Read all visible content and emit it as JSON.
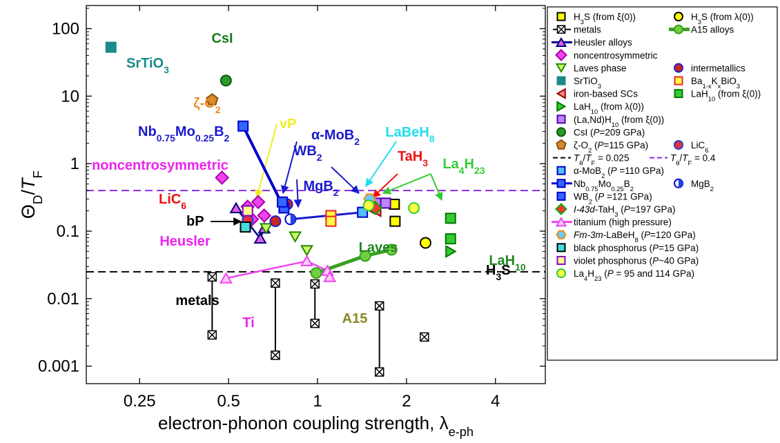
{
  "chart_data": {
    "type": "scatter",
    "xscale": "log",
    "yscale": "log",
    "xlim": [
      0.165,
      5.9
    ],
    "ylim": [
      0.00055,
      220
    ],
    "xlabel": "electron-phonon coupling strength, λe-ph",
    "ylabel": "ΘD/TF",
    "xticks": [
      0.25,
      0.5,
      1,
      2,
      4
    ],
    "xtick_labels": [
      "0.25",
      "0.5",
      "1",
      "2",
      "4"
    ],
    "yticks": [
      0.001,
      0.01,
      0.1,
      1,
      10,
      100
    ],
    "ytick_labels": [
      "0.001",
      "0.01",
      "0.1",
      "1",
      "10",
      "100"
    ],
    "reference_lines": [
      {
        "y": 0.025,
        "color": "#000000",
        "label": "Tθ/TF = 0.025"
      },
      {
        "y": 0.4,
        "color": "#8a2be2",
        "label": "Tθ/TF = 0.4"
      }
    ],
    "metal_ranges": [
      {
        "x": 0.44,
        "y1": 0.0029,
        "y2": 0.021
      },
      {
        "x": 0.72,
        "y1": 0.00145,
        "y2": 0.017
      },
      {
        "x": 0.98,
        "y1": 0.0043,
        "y2": 0.0165
      },
      {
        "x": 1.62,
        "y1": 0.00082,
        "y2": 0.0078
      },
      {
        "x": 2.3,
        "y1": 0.0027,
        "y2": null
      }
    ],
    "series": [
      {
        "id": "h3s_xi",
        "shape": "square",
        "fill": "#ffff00",
        "stroke": "#000",
        "points": [
          [
            1.82,
            0.25
          ],
          [
            1.83,
            0.14
          ]
        ]
      },
      {
        "id": "h3s_lambda",
        "shape": "circle",
        "fill": "#ffff00",
        "stroke": "#000",
        "points": [
          [
            2.32,
            0.067
          ]
        ]
      },
      {
        "id": "a15",
        "shape": "circle",
        "fill": "#6fcf3f",
        "stroke": "#3aa020",
        "line": true,
        "points": [
          [
            0.99,
            0.024
          ],
          [
            1.45,
            0.043
          ],
          [
            1.78,
            0.053
          ]
        ]
      },
      {
        "id": "heusler",
        "shape": "triangle",
        "fill": "#e060e0",
        "stroke": "#000080",
        "line": true,
        "points": [
          [
            0.53,
            0.22
          ],
          [
            0.64,
            0.078
          ],
          [
            0.66,
            0.11
          ]
        ]
      },
      {
        "id": "noncentro",
        "shape": "diamond",
        "fill": "#ee44ee",
        "stroke": "#aa00aa",
        "points": [
          [
            0.475,
            0.62
          ],
          [
            0.63,
            0.27
          ],
          [
            0.66,
            0.17
          ],
          [
            0.58,
            0.23
          ],
          [
            0.6,
            0.15
          ]
        ]
      },
      {
        "id": "laves",
        "shape": "triangle-down",
        "fill": "#ccff66",
        "stroke": "#228800",
        "points": [
          [
            0.67,
            0.11
          ],
          [
            0.84,
            0.083
          ],
          [
            0.92,
            0.052
          ]
        ]
      },
      {
        "id": "intermetallics",
        "shape": "circle",
        "fill": "#cc2222",
        "stroke": "#2222cc",
        "points": [
          [
            0.72,
            0.14
          ],
          [
            0.79,
            0.25
          ]
        ]
      },
      {
        "id": "srtio3",
        "shape": "square",
        "fill": "#1a8a8a",
        "stroke": "#1a8a8a",
        "points": [
          [
            0.2,
            53
          ]
        ]
      },
      {
        "id": "bakbio3",
        "shape": "square",
        "fill": "#ffff44",
        "stroke": "#ee2222",
        "points": [
          [
            1.11,
            0.17
          ],
          [
            1.11,
            0.14
          ]
        ]
      },
      {
        "id": "ironbased",
        "shape": "triangle-left",
        "fill": "#ff8888",
        "stroke": "#990000",
        "points": [
          [
            1.58,
            0.2
          ],
          [
            1.5,
            0.22
          ]
        ]
      },
      {
        "id": "lah10_xi",
        "shape": "square",
        "fill": "#33cc33",
        "stroke": "#007700",
        "points": [
          [
            2.82,
            0.155
          ],
          [
            2.82,
            0.077
          ]
        ]
      },
      {
        "id": "lah10_lambda",
        "shape": "triangle-right",
        "fill": "#33cc33",
        "stroke": "#007700",
        "points": [
          [
            2.82,
            0.05
          ]
        ]
      },
      {
        "id": "lands",
        "shape": "square",
        "fill": "#bb88ff",
        "stroke": "#5500aa",
        "points": [
          [
            1.61,
            0.26
          ],
          [
            1.7,
            0.26
          ]
        ]
      },
      {
        "id": "csi",
        "shape": "circle",
        "fill": "#2a9a2a",
        "stroke": "#0a5a0a",
        "points": [
          [
            0.49,
            17
          ]
        ]
      },
      {
        "id": "o2",
        "shape": "pentagon",
        "fill": "#d08a30",
        "stroke": "#8a5010",
        "points": [
          [
            0.44,
            8.8
          ]
        ]
      },
      {
        "id": "lic6",
        "shape": "circle",
        "fill": "#e83040",
        "stroke": "#1f3fcf",
        "points": [
          [
            0.58,
            0.145
          ]
        ]
      },
      {
        "id": "amob2",
        "shape": "square",
        "fill": "#55bbff",
        "stroke": "#0000cc",
        "points": [
          [
            1.42,
            0.19
          ]
        ]
      },
      {
        "id": "nbmob2",
        "shape": "square",
        "fill": "#3366ff",
        "stroke": "#0000cc",
        "line": true,
        "points": [
          [
            0.56,
            3.6
          ],
          [
            0.77,
            0.22
          ]
        ]
      },
      {
        "id": "mgb2",
        "shape": "circle-half",
        "fill": "#2244ee",
        "stroke": "#0000cc",
        "points": [
          [
            0.81,
            0.15
          ]
        ]
      },
      {
        "id": "wb2",
        "shape": "square",
        "fill": "#3366ff",
        "stroke": "#0000cc",
        "points": [
          [
            0.76,
            0.27
          ]
        ]
      },
      {
        "id": "tah3",
        "shape": "diamond",
        "fill": "#ff3333",
        "stroke": "#00aa00",
        "points": [
          [
            1.57,
            0.22
          ]
        ]
      },
      {
        "id": "titanium",
        "shape": "triangle",
        "fill": "#ffccff",
        "stroke": "#ee44ee",
        "line": true,
        "points": [
          [
            0.49,
            0.02
          ],
          [
            0.92,
            0.036
          ],
          [
            1.08,
            0.026
          ],
          [
            1.1,
            0.021
          ]
        ]
      },
      {
        "id": "labeh8",
        "shape": "hexagon",
        "fill": "#66ccff",
        "stroke": "#ff8800",
        "points": [
          [
            1.5,
            0.3
          ]
        ]
      },
      {
        "id": "bp",
        "shape": "square",
        "fill": "#44dddd",
        "stroke": "#000",
        "points": [
          [
            0.57,
            0.115
          ]
        ]
      },
      {
        "id": "vp",
        "shape": "square",
        "fill": "#ffff88",
        "stroke": "#8800cc",
        "points": [
          [
            0.58,
            0.2
          ]
        ]
      },
      {
        "id": "la4h23",
        "shape": "circle",
        "fill": "#ffff44",
        "stroke": "#33cc33",
        "points": [
          [
            1.49,
            0.24
          ],
          [
            2.12,
            0.22
          ]
        ]
      }
    ],
    "legend": {
      "placement": "right",
      "entries": [
        {
          "label": "H3S (from ξ(0))",
          "series": "h3s_xi"
        },
        {
          "label": "H3S (from λ(0))",
          "series": "h3s_lambda"
        },
        {
          "label": "metals",
          "series": "metals"
        },
        {
          "label": "A15 alloys",
          "series": "a15"
        },
        {
          "label": "Heusler alloys",
          "series": "heusler"
        },
        {
          "label": "noncentrosymmetric",
          "series": "noncentro"
        },
        {
          "label": "Laves phase",
          "series": "laves"
        },
        {
          "label": "intermetallics",
          "series": "intermetallics"
        },
        {
          "label": "SrTiO3",
          "series": "srtio3"
        },
        {
          "label": "Ba1-xKxBiO3",
          "series": "bakbio3"
        },
        {
          "label": "iron-based SCs",
          "series": "ironbased"
        },
        {
          "label": "LaH10 (from ξ(0))",
          "series": "lah10_xi"
        },
        {
          "label": "LaH10 (from λ(0))",
          "series": "lah10_lambda"
        },
        {
          "label": "(La,Nd)H10 (from ξ(0))",
          "series": "lands"
        },
        {
          "label": "CsI (P=209 GPa)",
          "series": "csi"
        },
        {
          "label": "ζ-O2 (P=115 GPa)",
          "series": "o2"
        },
        {
          "label": "LiC6",
          "series": "lic6"
        },
        {
          "label": "Tθ/TF = 0.025",
          "series": "ref_black"
        },
        {
          "label": "Tθ/TF = 0.4",
          "series": "ref_violet"
        },
        {
          "label": "α-MoB2 (P =110 GPa)",
          "series": "amob2"
        },
        {
          "label": "Nb0.75Mo0.25B2",
          "series": "nbmob2"
        },
        {
          "label": "MgB2",
          "series": "mgb2"
        },
        {
          "label": "WB2 (P =121 GPa)",
          "series": "wb2"
        },
        {
          "label": "I-43d-TaH3 (P=197 GPa)",
          "series": "tah3"
        },
        {
          "label": "titanium (high pressure)",
          "series": "titanium"
        },
        {
          "label": "Fm-3m-LaBeH8 (P=120 GPa)",
          "series": "labeh8"
        },
        {
          "label": "black phosphorus (P=15 GPa)",
          "series": "bp"
        },
        {
          "label": "violet phosphorus (P~40 GPa)",
          "series": "vp"
        },
        {
          "label": "La4H23 (P = 95 and 114 GPa)",
          "series": "la4h23"
        }
      ]
    },
    "annotations": [
      {
        "text": "SrTiO3",
        "color": "#1a8a8a"
      },
      {
        "text": "CsI",
        "color": "#1a7a1a"
      },
      {
        "text": "ζ-O2",
        "color": "#ee8822"
      },
      {
        "text": "Nb0.75Mo0.25B2",
        "color": "#1a1acc"
      },
      {
        "text": "vP",
        "color": "#eeee22"
      },
      {
        "text": "noncentrosymmetric",
        "color": "#ee22ee"
      },
      {
        "text": "WB2",
        "color": "#1a1acc"
      },
      {
        "text": "α-MoB2",
        "color": "#1a1acc"
      },
      {
        "text": "LaBeH8",
        "color": "#22ddee"
      },
      {
        "text": "MgB2",
        "color": "#1a1acc"
      },
      {
        "text": "TaH3",
        "color": "#ee1111"
      },
      {
        "text": "La4H23",
        "color": "#33cc33"
      },
      {
        "text": "LiC6",
        "color": "#ee1111"
      },
      {
        "text": "bP",
        "color": "#000000"
      },
      {
        "text": "H3S",
        "color": "#000000"
      },
      {
        "text": "Heusler",
        "color": "#ee22ee"
      },
      {
        "text": "Laves",
        "color": "#228822"
      },
      {
        "text": "LaH10",
        "color": "#228822"
      },
      {
        "text": "Ti",
        "color": "#ee22ee"
      },
      {
        "text": "A15",
        "color": "#888822"
      },
      {
        "text": "metals",
        "color": "#000000"
      }
    ]
  }
}
